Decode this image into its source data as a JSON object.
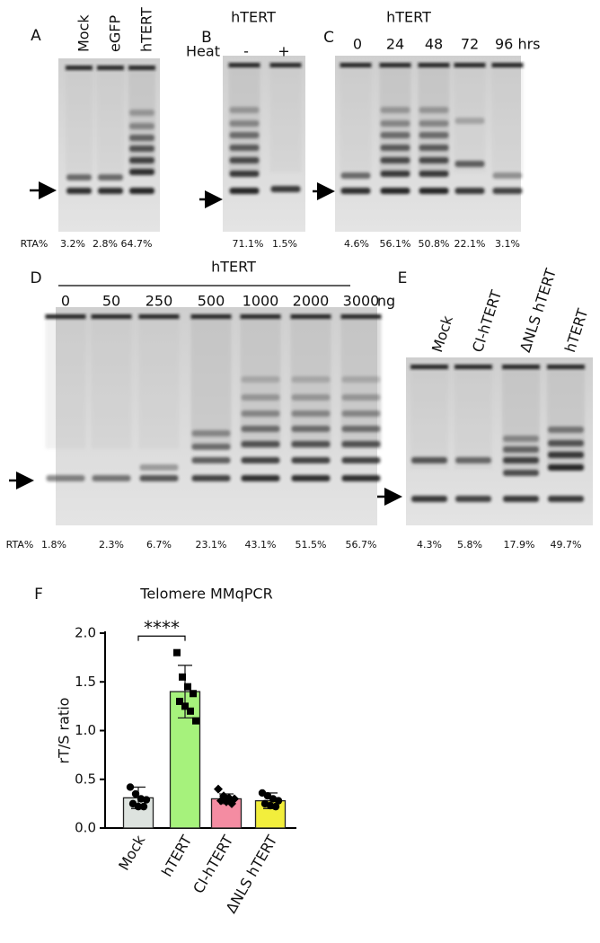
{
  "panels": {
    "A": {
      "letter": "A",
      "lanes": [
        "Mock",
        "eGFP",
        "hTERT"
      ],
      "rta_label": "RTA%",
      "rta": [
        "3.2%",
        "2.8%",
        "64.7%"
      ]
    },
    "B": {
      "letter": "B",
      "title": "hTERT",
      "heat_label": "Heat",
      "lanes": [
        "-",
        "+"
      ],
      "rta": [
        "71.1%",
        "1.5%"
      ]
    },
    "C": {
      "letter": "C",
      "title": "hTERT",
      "lanes": [
        "0",
        "24",
        "48",
        "72",
        "96 hrs"
      ],
      "rta": [
        "4.6%",
        "56.1%",
        "50.8%",
        "22.1%",
        "3.1%"
      ]
    },
    "D": {
      "letter": "D",
      "title": "hTERT",
      "lanes": [
        "0",
        "50",
        "250",
        "500",
        "1000",
        "2000",
        "3000"
      ],
      "unit": "ng",
      "rta_label": "RTA%",
      "rta": [
        "1.8%",
        "2.3%",
        "6.7%",
        "23.1%",
        "43.1%",
        "51.5%",
        "56.7%"
      ]
    },
    "E": {
      "letter": "E",
      "lanes": [
        "Mock",
        "CI-hTERT",
        "ΔNLS hTERT",
        "hTERT"
      ],
      "rta": [
        "4.3%",
        "5.8%",
        "17.9%",
        "49.7%"
      ]
    }
  },
  "chart_data": {
    "type": "bar",
    "letter": "F",
    "title": "Telomere MMqPCR",
    "y_label": "rT/S ratio",
    "categories": [
      "Mock",
      "hTERT",
      "CI-hTERT",
      "ΔNLS hTERT"
    ],
    "values": [
      0.31,
      1.4,
      0.3,
      0.28
    ],
    "errors": [
      0.11,
      0.27,
      0.05,
      0.08
    ],
    "colors": [
      "#dde3df",
      "#a6f27c",
      "#f48ca2",
      "#f2ee3c"
    ],
    "points": [
      [
        0.42,
        0.35,
        0.3,
        0.29,
        0.25,
        0.22,
        0.22
      ],
      [
        1.8,
        1.55,
        1.45,
        1.38,
        1.3,
        1.25,
        1.2,
        1.1
      ],
      [
        0.4,
        0.33,
        0.31,
        0.3,
        0.28,
        0.27,
        0.25
      ],
      [
        0.36,
        0.33,
        0.3,
        0.28,
        0.25,
        0.23,
        0.22
      ]
    ],
    "annotation": "****",
    "ylim": [
      0,
      2
    ],
    "yticks": [
      {
        "value": 0,
        "label": "0.0"
      },
      {
        "value": 0.5,
        "label": "0.5"
      },
      {
        "value": 1,
        "label": "1.0"
      },
      {
        "value": 1.5,
        "label": "1.5"
      },
      {
        "value": 2,
        "label": "2.0"
      }
    ]
  }
}
